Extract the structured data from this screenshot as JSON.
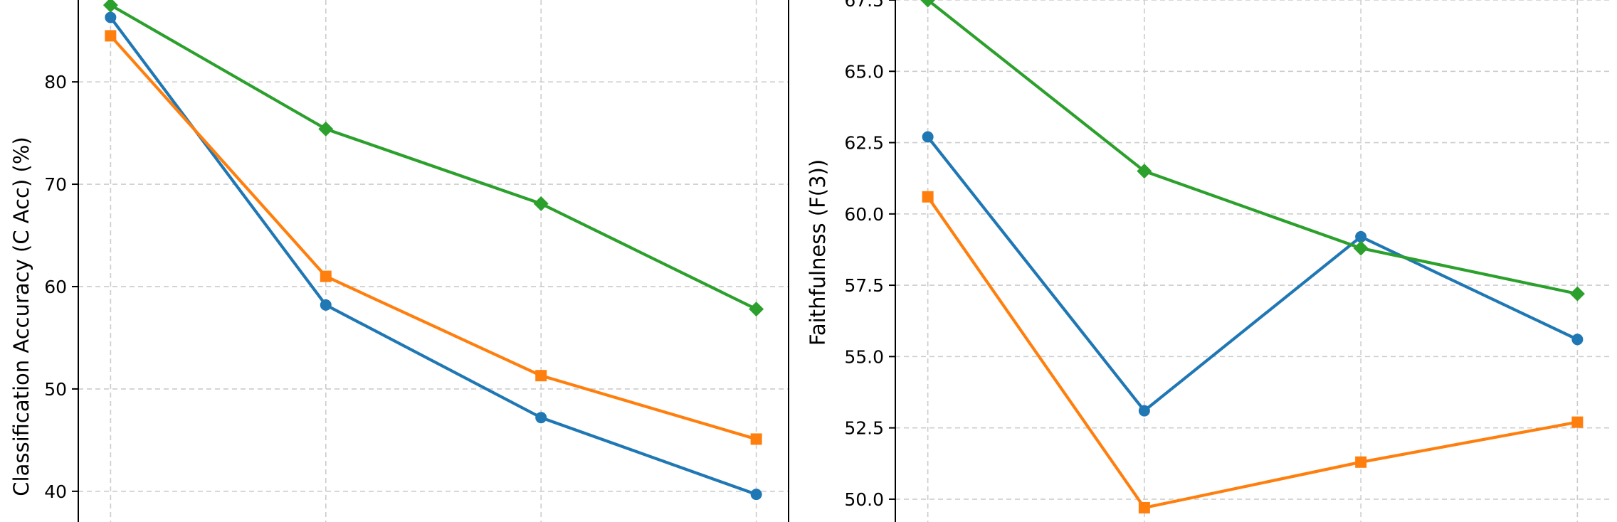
{
  "chart_data": [
    {
      "type": "line",
      "title": "",
      "xlabel": "",
      "ylabel": "Classification Accuracy (C Acc) (%)",
      "x": [
        1,
        2,
        3,
        4
      ],
      "xlim": [
        0.85,
        4.15
      ],
      "ylim": [
        37.0,
        88.0
      ],
      "yticks": [
        40,
        50,
        60,
        70,
        80
      ],
      "grid": true,
      "series": [
        {
          "values": [
            86.3,
            58.2,
            47.2,
            39.7
          ],
          "color": "#1f77b4",
          "marker": "circle"
        },
        {
          "values": [
            84.5,
            61.0,
            51.3,
            45.1
          ],
          "color": "#ff7f0e",
          "marker": "square"
        },
        {
          "values": [
            87.5,
            75.4,
            68.1,
            57.8
          ],
          "color": "#2ca02c",
          "marker": "diamond"
        }
      ]
    },
    {
      "type": "line",
      "title": "",
      "xlabel": "",
      "ylabel": "Faithfulness (F(3))",
      "x": [
        1,
        2,
        3,
        4
      ],
      "xlim": [
        0.85,
        4.15
      ],
      "ylim": [
        49.2,
        67.5
      ],
      "yticks": [
        50.0,
        52.5,
        55.0,
        57.5,
        60.0,
        62.5,
        65.0,
        67.5
      ],
      "ytick_labels": [
        "50.0",
        "52.5",
        "55.0",
        "57.5",
        "60.0",
        "62.5",
        "65.0",
        "67.5"
      ],
      "grid": true,
      "series": [
        {
          "values": [
            62.7,
            53.1,
            59.2,
            55.6
          ],
          "color": "#1f77b4",
          "marker": "circle"
        },
        {
          "values": [
            60.6,
            49.7,
            51.3,
            52.7
          ],
          "color": "#ff7f0e",
          "marker": "square"
        },
        {
          "values": [
            67.5,
            61.5,
            58.8,
            57.2
          ],
          "color": "#2ca02c",
          "marker": "diamond"
        }
      ]
    }
  ]
}
